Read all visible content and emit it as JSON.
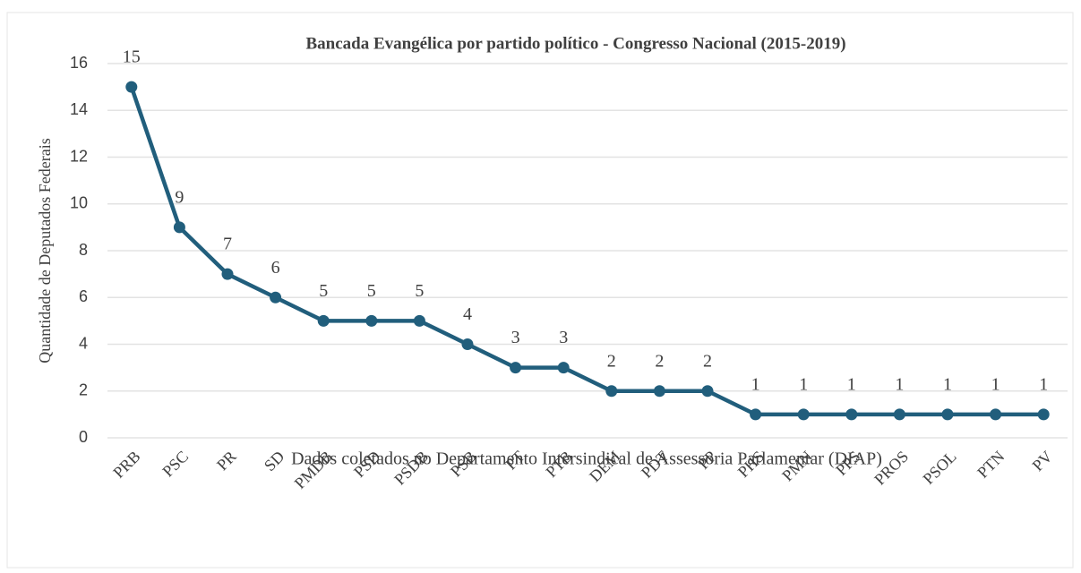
{
  "chart_data": {
    "type": "line",
    "title": "Bancada Evangélica por partido político - Congresso Nacional (2015-2019)",
    "subtitle": "Dados coletados no Departamento Intersindical de Assessoria Parlamentar (DIAP)",
    "y_label": "Quantidade de Deputados Federais",
    "categories": [
      "PRB",
      "PSC",
      "PR",
      "SD",
      "PMDB",
      "PSD",
      "PSDB",
      "PSB",
      "PT",
      "PTB",
      "DEM",
      "PDT",
      "PP",
      "PHS",
      "PMN",
      "PPS",
      "PROS",
      "PSOL",
      "PTN",
      "PV"
    ],
    "series": [
      {
        "name": "Quantidade de Deputados Federais",
        "color": "#215e7c",
        "values": [
          15,
          9,
          7,
          6,
          5,
          5,
          5,
          4,
          3,
          3,
          2,
          2,
          2,
          1,
          1,
          1,
          1,
          1,
          1,
          1
        ]
      }
    ],
    "ylim": [
      0,
      16
    ],
    "yticks": [
      0,
      2,
      4,
      6,
      8,
      10,
      12,
      14,
      16
    ],
    "grid": true
  }
}
